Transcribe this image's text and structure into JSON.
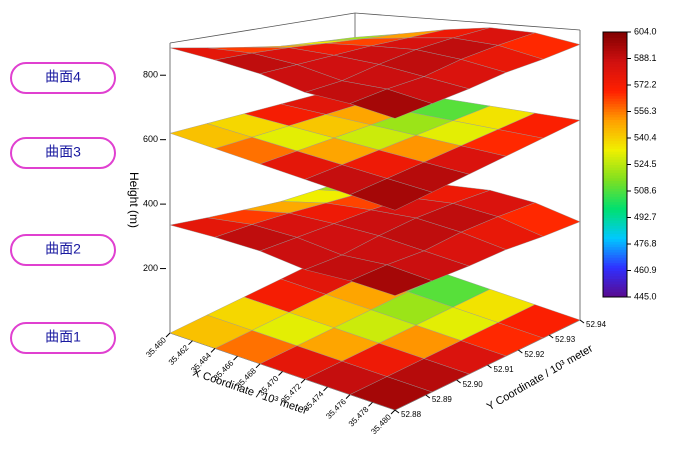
{
  "chart_data": {
    "type": "surface3d",
    "xlabel": "X Coordinate / 10³ meter",
    "ylabel": "Y Coordinate / 10³ meter",
    "zlabel": "Height (m)",
    "xlim": [
      35.46,
      35.48
    ],
    "ylim": [
      52.88,
      52.94
    ],
    "zlim": [
      0,
      900
    ],
    "xticks": [
      {
        "value": 35.46,
        "label": "35.460"
      },
      35.462,
      35.464,
      35.466,
      35.468,
      {
        "value": 35.47,
        "label": "35.470"
      },
      35.472,
      35.474,
      35.476,
      35.478,
      {
        "value": 35.48,
        "label": "35.480"
      }
    ],
    "yticks": [
      52.88,
      52.89,
      {
        "value": 52.9,
        "label": "52.90"
      },
      52.91,
      52.92,
      52.93,
      52.94
    ],
    "zticks": [
      200,
      400,
      600,
      800
    ],
    "clim": [
      445,
      604
    ],
    "cticks": [
      {
        "value": 445,
        "label": "445.0"
      },
      460.9,
      476.8,
      492.7,
      508.6,
      524.5,
      540.4,
      556.3,
      572.2,
      588.1,
      {
        "value": 604,
        "label": "604.0"
      }
    ],
    "colormap": [
      "#5a0a8c",
      "#3030ff",
      "#00c8ff",
      "#00e070",
      "#80e020",
      "#f0f000",
      "#ffa000",
      "#ff2000",
      "#d01010",
      "#800000"
    ],
    "series": [
      {
        "name": "曲面4",
        "level": 750,
        "relief": true,
        "values": [
          [
            580,
            590,
            595,
            585,
            598,
            600
          ],
          [
            560,
            585,
            590,
            580,
            595,
            590
          ],
          [
            540,
            575,
            585,
            590,
            585,
            580
          ],
          [
            520,
            560,
            580,
            595,
            590,
            575
          ],
          [
            510,
            545,
            570,
            590,
            585,
            560
          ],
          [
            500,
            530,
            560,
            580,
            575,
            550
          ]
        ]
      },
      {
        "name": "曲面3",
        "level": 620,
        "relief": false,
        "values": [
          [
            560,
            575,
            585,
            590,
            595,
            600
          ],
          [
            530,
            510,
            560,
            580,
            590,
            598
          ],
          [
            575,
            540,
            515,
            545,
            585,
            595
          ],
          [
            590,
            585,
            530,
            520,
            560,
            590
          ],
          [
            585,
            560,
            525,
            505,
            540,
            580
          ],
          [
            470,
            500,
            480,
            530,
            570,
            590
          ]
        ]
      },
      {
        "name": "曲面2",
        "level": 200,
        "relief": true,
        "values": [
          [
            580,
            590,
            595,
            585,
            598,
            600
          ],
          [
            560,
            585,
            590,
            580,
            595,
            590
          ],
          [
            540,
            575,
            585,
            590,
            585,
            580
          ],
          [
            520,
            560,
            580,
            595,
            590,
            575
          ],
          [
            510,
            545,
            570,
            590,
            585,
            560
          ],
          [
            500,
            530,
            560,
            580,
            575,
            550
          ]
        ]
      },
      {
        "name": "曲面1",
        "level": 0,
        "relief": false,
        "values": [
          [
            560,
            575,
            585,
            590,
            595,
            600
          ],
          [
            530,
            510,
            560,
            580,
            590,
            598
          ],
          [
            575,
            540,
            515,
            545,
            585,
            595
          ],
          [
            590,
            585,
            530,
            520,
            560,
            590
          ],
          [
            585,
            560,
            525,
            505,
            540,
            580
          ],
          [
            520,
            500,
            480,
            530,
            570,
            590
          ]
        ]
      }
    ]
  }
}
